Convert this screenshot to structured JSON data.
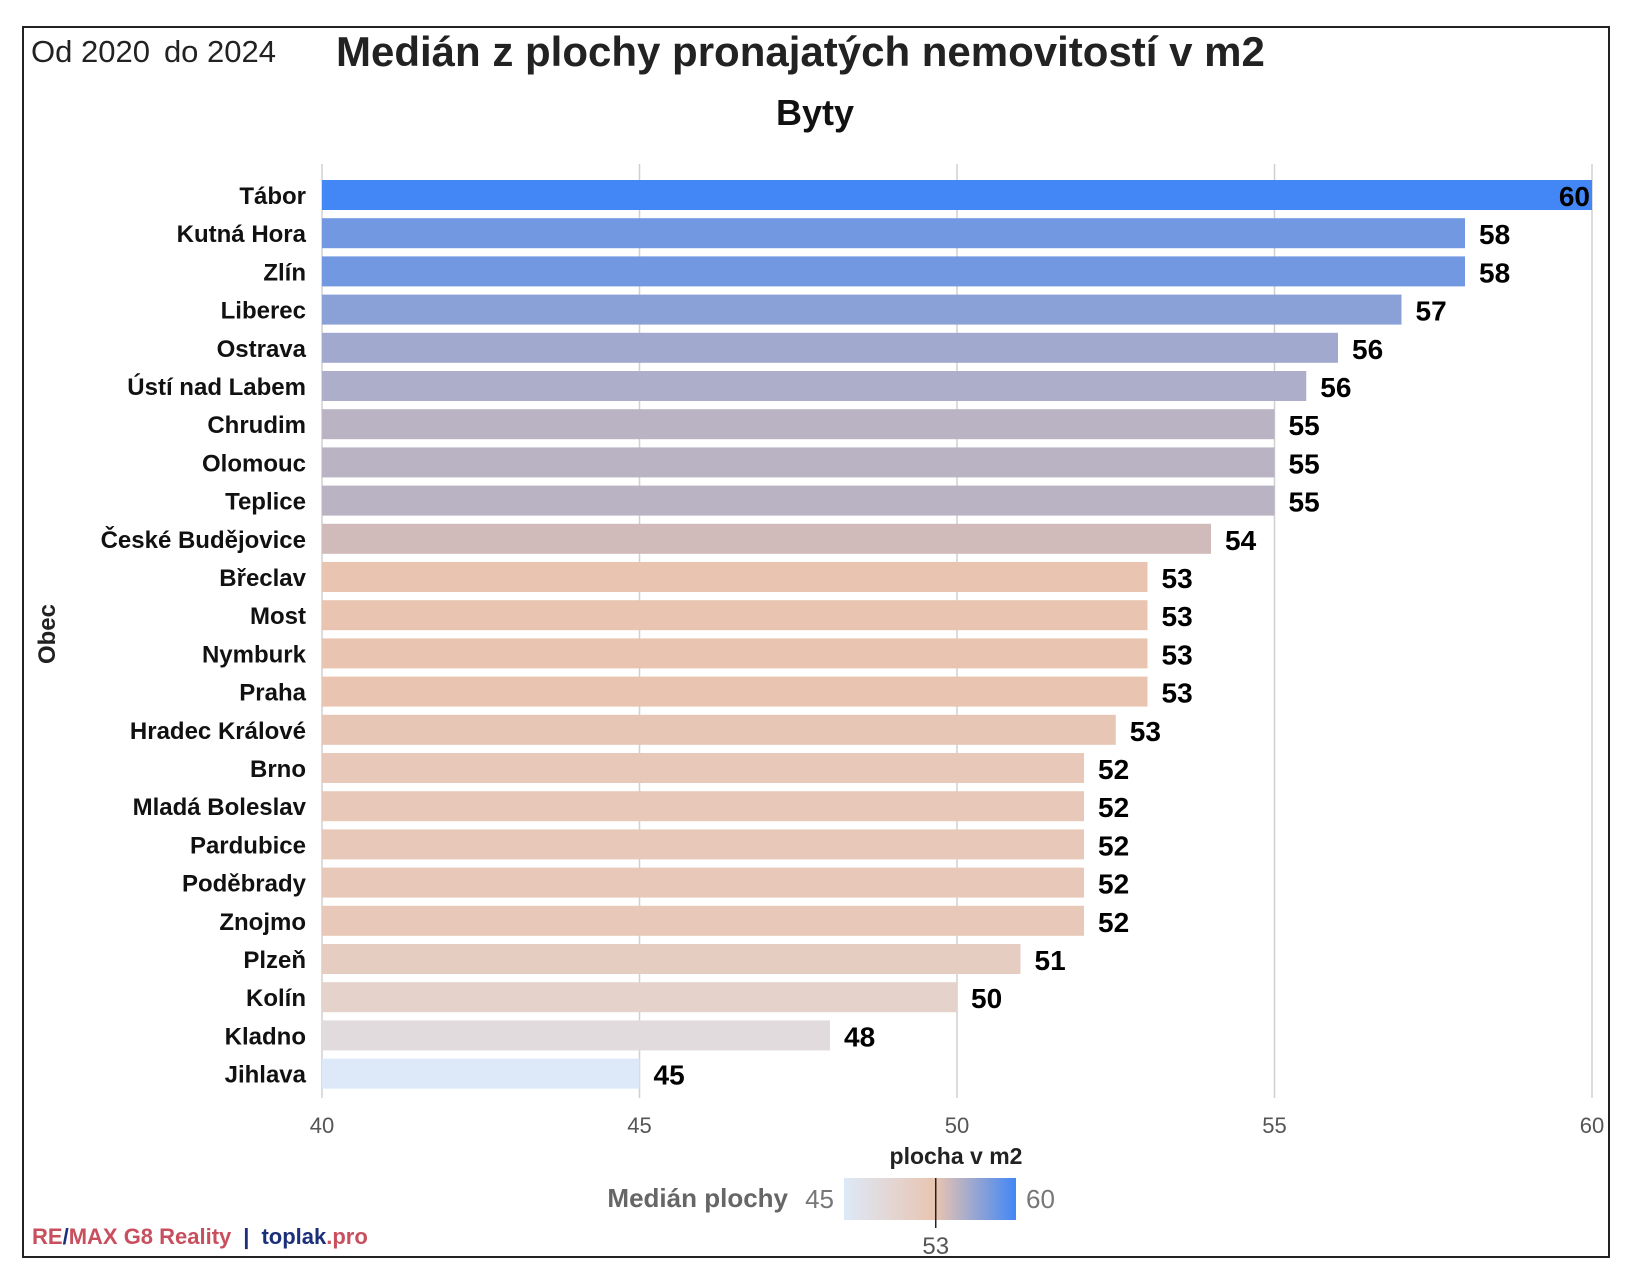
{
  "period": {
    "from": "Od 2020",
    "to": "do 2024"
  },
  "title": "Medián z plochy pronajatých nemovitostí v m2",
  "subtitle": "Byty",
  "footer": {
    "remax": "RE",
    "slash": "/",
    "remax2": "MAX G8 Reality",
    "sep": "|",
    "top": "toplak",
    "pro": ".pro"
  },
  "legend": {
    "title": "Medián plochy",
    "min": "45",
    "max": "60",
    "mid": "53"
  },
  "colors": {
    "low": "#dde9f8",
    "mid": "#e9c4b0",
    "high": "#4287f5",
    "grid": "#d0d0d0"
  },
  "chart_data": {
    "type": "bar",
    "orientation": "horizontal",
    "categories": [
      "Tábor",
      "Kutná Hora",
      "Zlín",
      "Liberec",
      "Ostrava",
      "Ústí nad Labem",
      "Chrudim",
      "Olomouc",
      "Teplice",
      "České Budějovice",
      "Břeclav",
      "Most",
      "Nymburk",
      "Praha",
      "Hradec Králové",
      "Brno",
      "Mladá Boleslav",
      "Pardubice",
      "Poděbrady",
      "Znojmo",
      "Plzeň",
      "Kolín",
      "Kladno",
      "Jihlava"
    ],
    "values": [
      60,
      58,
      58,
      57,
      56,
      55.5,
      55,
      55,
      55,
      54,
      53,
      53,
      53,
      53,
      52.5,
      52,
      52,
      52,
      52,
      52,
      51,
      50,
      48,
      45
    ],
    "labels": [
      "60",
      "58",
      "58",
      "57",
      "56",
      "56",
      "55",
      "55",
      "55",
      "54",
      "53",
      "53",
      "53",
      "53",
      "53",
      "52",
      "52",
      "52",
      "52",
      "52",
      "51",
      "50",
      "48",
      "45"
    ],
    "xlabel": "plocha v m2",
    "ylabel": "Obec",
    "xlim": [
      40,
      60
    ],
    "xticks": [
      40,
      45,
      50,
      55,
      60
    ],
    "grid": true
  }
}
